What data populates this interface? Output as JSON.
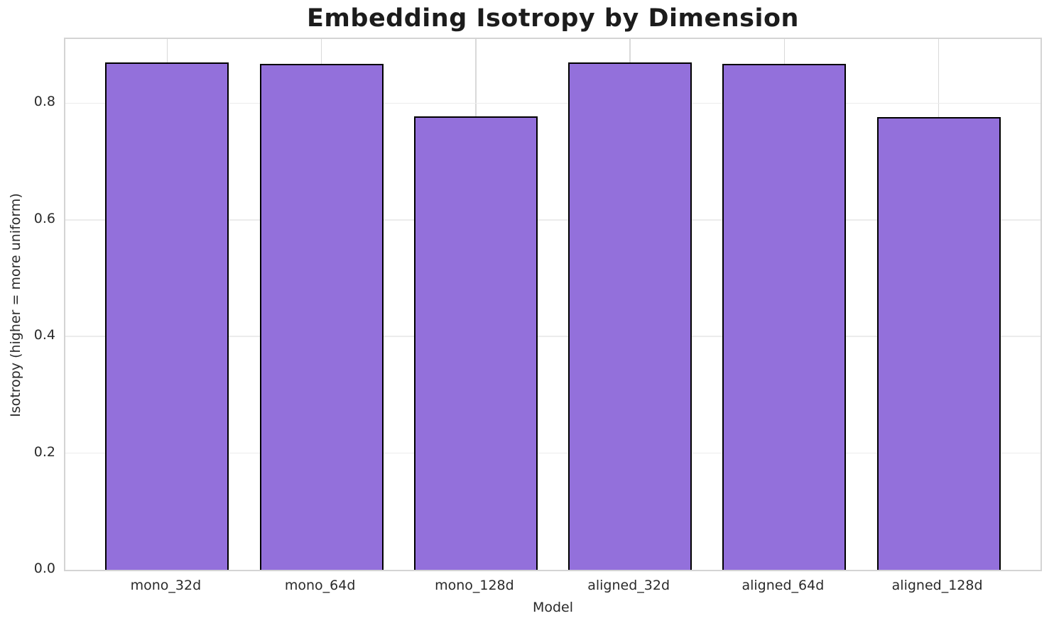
{
  "chart_data": {
    "type": "bar",
    "title": "Embedding Isotropy by Dimension",
    "xlabel": "Model",
    "ylabel": "Isotropy (higher = more uniform)",
    "categories": [
      "mono_32d",
      "mono_64d",
      "mono_128d",
      "aligned_32d",
      "aligned_64d",
      "aligned_128d"
    ],
    "values": [
      0.87,
      0.868,
      0.778,
      0.87,
      0.868,
      0.776
    ],
    "yticks": [
      0.0,
      0.2,
      0.4,
      0.6,
      0.8
    ],
    "ytick_labels": [
      "0.0",
      "0.2",
      "0.4",
      "0.6",
      "0.8"
    ],
    "ylim": [
      0,
      0.91
    ],
    "grid": true,
    "legend": "none",
    "bar_fill_color": "#9370DB",
    "bar_edge_color": "#000000",
    "grid_color_vertical": "#d9d9d9",
    "grid_color_horizontal": "#ececec",
    "spine_color": "#d4d4d4",
    "text_color": "#2a2a2a"
  }
}
